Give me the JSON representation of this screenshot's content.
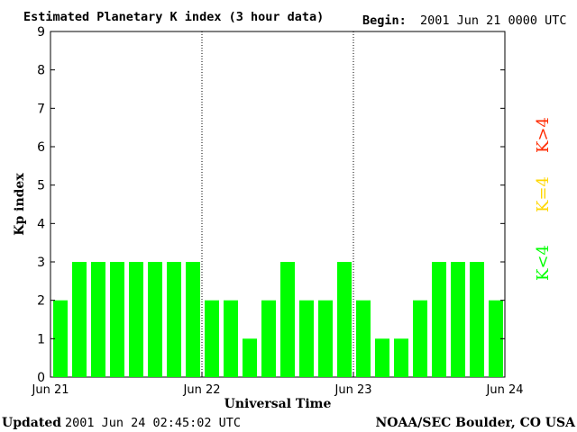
{
  "header": {
    "title": "Estimated Planetary K index (3 hour data)",
    "begin_label": "Begin:",
    "begin_value": "2001 Jun 21 0000 UTC"
  },
  "footer": {
    "updated_label": "Updated",
    "updated_value": "2001 Jun 24 02:45:02 UTC",
    "credit": "NOAA/SEC Boulder, CO USA"
  },
  "legend": {
    "high": {
      "label": "K>4",
      "color": "#ff2a00"
    },
    "mid": {
      "label": "K=4",
      "color": "#ffd700"
    },
    "low": {
      "label": "K<4",
      "color": "#00ff00"
    }
  },
  "chart_data": {
    "type": "bar",
    "title": "Estimated Planetary K index (3 hour data)",
    "xlabel": "Universal Time",
    "ylabel": "Kp index",
    "ylim": [
      0,
      9
    ],
    "yticks": [
      "0",
      "1",
      "2",
      "3",
      "4",
      "5",
      "6",
      "7",
      "8",
      "9"
    ],
    "xticks": [
      "Jun 21",
      "Jun 22",
      "Jun 23",
      "Jun 24"
    ],
    "bar_color": "#00ff00",
    "day_separators": true,
    "values": [
      2,
      3,
      3,
      3,
      3,
      3,
      3,
      3,
      2,
      2,
      1,
      2,
      3,
      2,
      2,
      3,
      2,
      1,
      1,
      2,
      3,
      3,
      3,
      2
    ]
  }
}
